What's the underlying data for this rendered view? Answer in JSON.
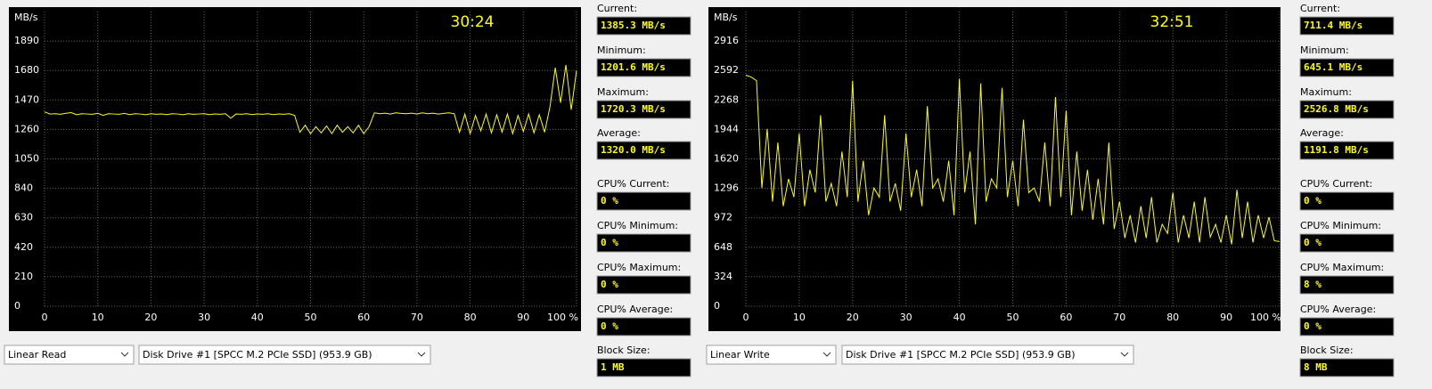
{
  "chart_data": [
    {
      "type": "line",
      "y_label": "MB/s",
      "timer": "30:24",
      "x": [
        0,
        1,
        2,
        3,
        4,
        5,
        6,
        7,
        8,
        9,
        10,
        11,
        12,
        13,
        14,
        15,
        16,
        17,
        18,
        19,
        20,
        21,
        22,
        23,
        24,
        25,
        26,
        27,
        28,
        29,
        30,
        31,
        32,
        33,
        34,
        35,
        36,
        37,
        38,
        39,
        40,
        41,
        42,
        43,
        44,
        45,
        46,
        47,
        48,
        49,
        50,
        51,
        52,
        53,
        54,
        55,
        56,
        57,
        58,
        59,
        60,
        61,
        62,
        63,
        64,
        65,
        66,
        67,
        68,
        69,
        70,
        71,
        72,
        73,
        74,
        75,
        76,
        77,
        78,
        79,
        80,
        81,
        82,
        83,
        84,
        85,
        86,
        87,
        88,
        89,
        90,
        91,
        92,
        93,
        94,
        95,
        96,
        97,
        98,
        99,
        100
      ],
      "series": [
        {
          "color": "#ffff00",
          "values": [
            1385,
            1370,
            1372,
            1368,
            1375,
            1380,
            1365,
            1372,
            1370,
            1368,
            1375,
            1360,
            1372,
            1370,
            1368,
            1374,
            1366,
            1372,
            1370,
            1365,
            1372,
            1368,
            1370,
            1366,
            1372,
            1370,
            1365,
            1372,
            1368,
            1370,
            1372,
            1366,
            1370,
            1368,
            1372,
            1340,
            1370,
            1368,
            1372,
            1366,
            1370,
            1368,
            1372,
            1366,
            1370,
            1368,
            1372,
            1360,
            1240,
            1290,
            1230,
            1280,
            1235,
            1285,
            1230,
            1290,
            1240,
            1280,
            1235,
            1290,
            1230,
            1280,
            1378,
            1372,
            1376,
            1370,
            1378,
            1374,
            1372,
            1376,
            1370,
            1378,
            1372,
            1376,
            1370,
            1374,
            1378,
            1372,
            1240,
            1370,
            1230,
            1360,
            1250,
            1370,
            1235,
            1365,
            1240,
            1370,
            1230,
            1360,
            1245,
            1370,
            1235,
            1365,
            1240,
            1420,
            1700,
            1450,
            1720,
            1400,
            1680
          ]
        }
      ],
      "xlim": [
        0,
        100
      ],
      "xticks": [
        0,
        10,
        20,
        30,
        40,
        50,
        60,
        70,
        80,
        90,
        {
          "value": 100,
          "label": "100 %"
        }
      ],
      "ylim": [
        0,
        2100
      ],
      "yticks": [
        0,
        210,
        420,
        630,
        840,
        1050,
        1260,
        1470,
        1680,
        1890
      ],
      "grid": true
    },
    {
      "type": "line",
      "y_label": "MB/s",
      "timer": "32:51",
      "x": [
        0,
        1,
        2,
        3,
        4,
        5,
        6,
        7,
        8,
        9,
        10,
        11,
        12,
        13,
        14,
        15,
        16,
        17,
        18,
        19,
        20,
        21,
        22,
        23,
        24,
        25,
        26,
        27,
        28,
        29,
        30,
        31,
        32,
        33,
        34,
        35,
        36,
        37,
        38,
        39,
        40,
        41,
        42,
        43,
        44,
        45,
        46,
        47,
        48,
        49,
        50,
        51,
        52,
        53,
        54,
        55,
        56,
        57,
        58,
        59,
        60,
        61,
        62,
        63,
        64,
        65,
        66,
        67,
        68,
        69,
        70,
        71,
        72,
        73,
        74,
        75,
        76,
        77,
        78,
        79,
        80,
        81,
        82,
        83,
        84,
        85,
        86,
        87,
        88,
        89,
        90,
        91,
        92,
        93,
        94,
        95,
        96,
        97,
        98,
        99,
        100
      ],
      "series": [
        {
          "color": "#ffff00",
          "values": [
            2540,
            2520,
            2480,
            1300,
            1950,
            1150,
            1800,
            1100,
            1400,
            1200,
            1900,
            1100,
            1500,
            1250,
            2100,
            1150,
            1350,
            1100,
            1700,
            1200,
            2480,
            1150,
            1600,
            1000,
            1300,
            1200,
            2100,
            1150,
            1350,
            1050,
            1900,
            1200,
            1500,
            1100,
            2200,
            1300,
            1400,
            1150,
            1600,
            1000,
            2500,
            1250,
            1700,
            900,
            2450,
            1150,
            1400,
            1300,
            2400,
            1200,
            1600,
            1100,
            2050,
            1250,
            1300,
            1150,
            1800,
            1100,
            2300,
            1200,
            2150,
            1000,
            1700,
            1050,
            1500,
            950,
            1400,
            900,
            1800,
            850,
            1150,
            750,
            1000,
            700,
            1100,
            750,
            1200,
            700,
            900,
            800,
            1250,
            700,
            1000,
            750,
            1150,
            700,
            1200,
            760,
            900,
            700,
            1000,
            680,
            1280,
            750,
            1150,
            700,
            1000,
            750,
            980,
            720,
            711
          ]
        }
      ],
      "xlim": [
        0,
        100
      ],
      "xticks": [
        0,
        10,
        20,
        30,
        40,
        50,
        60,
        70,
        80,
        90,
        {
          "value": 100,
          "label": "100 %"
        }
      ],
      "ylim": [
        0,
        3240
      ],
      "yticks": [
        0,
        324,
        648,
        972,
        1296,
        1620,
        1944,
        2268,
        2592,
        2916
      ],
      "grid": true
    }
  ],
  "panels": [
    {
      "stats": [
        [
          "Current:",
          "1385.3 MB/s"
        ],
        [
          "Minimum:",
          "1201.6 MB/s"
        ],
        [
          "Maximum:",
          "1720.3 MB/s"
        ],
        [
          "Average:",
          "1320.0 MB/s"
        ],
        [
          "CPU% Current:",
          "0 %"
        ],
        [
          "CPU% Minimum:",
          "0 %"
        ],
        [
          "CPU% Maximum:",
          "0 %"
        ],
        [
          "CPU% Average:",
          "0 %"
        ],
        [
          "Block Size:",
          "1 MB"
        ]
      ],
      "test": "Linear Read",
      "drive": "Disk Drive #1  [SPCC M.2 PCIe SSD]  (953.9 GB)"
    },
    {
      "stats": [
        [
          "Current:",
          "711.4 MB/s"
        ],
        [
          "Minimum:",
          "645.1 MB/s"
        ],
        [
          "Maximum:",
          "2526.8 MB/s"
        ],
        [
          "Average:",
          "1191.8 MB/s"
        ],
        [
          "CPU% Current:",
          "0 %"
        ],
        [
          "CPU% Minimum:",
          "0 %"
        ],
        [
          "CPU% Maximum:",
          "8 %"
        ],
        [
          "CPU% Average:",
          "0 %"
        ],
        [
          "Block Size:",
          "8 MB"
        ]
      ],
      "test": "Linear Write",
      "drive": "Disk Drive #1  [SPCC M.2 PCIe SSD]  (953.9 GB)"
    }
  ]
}
